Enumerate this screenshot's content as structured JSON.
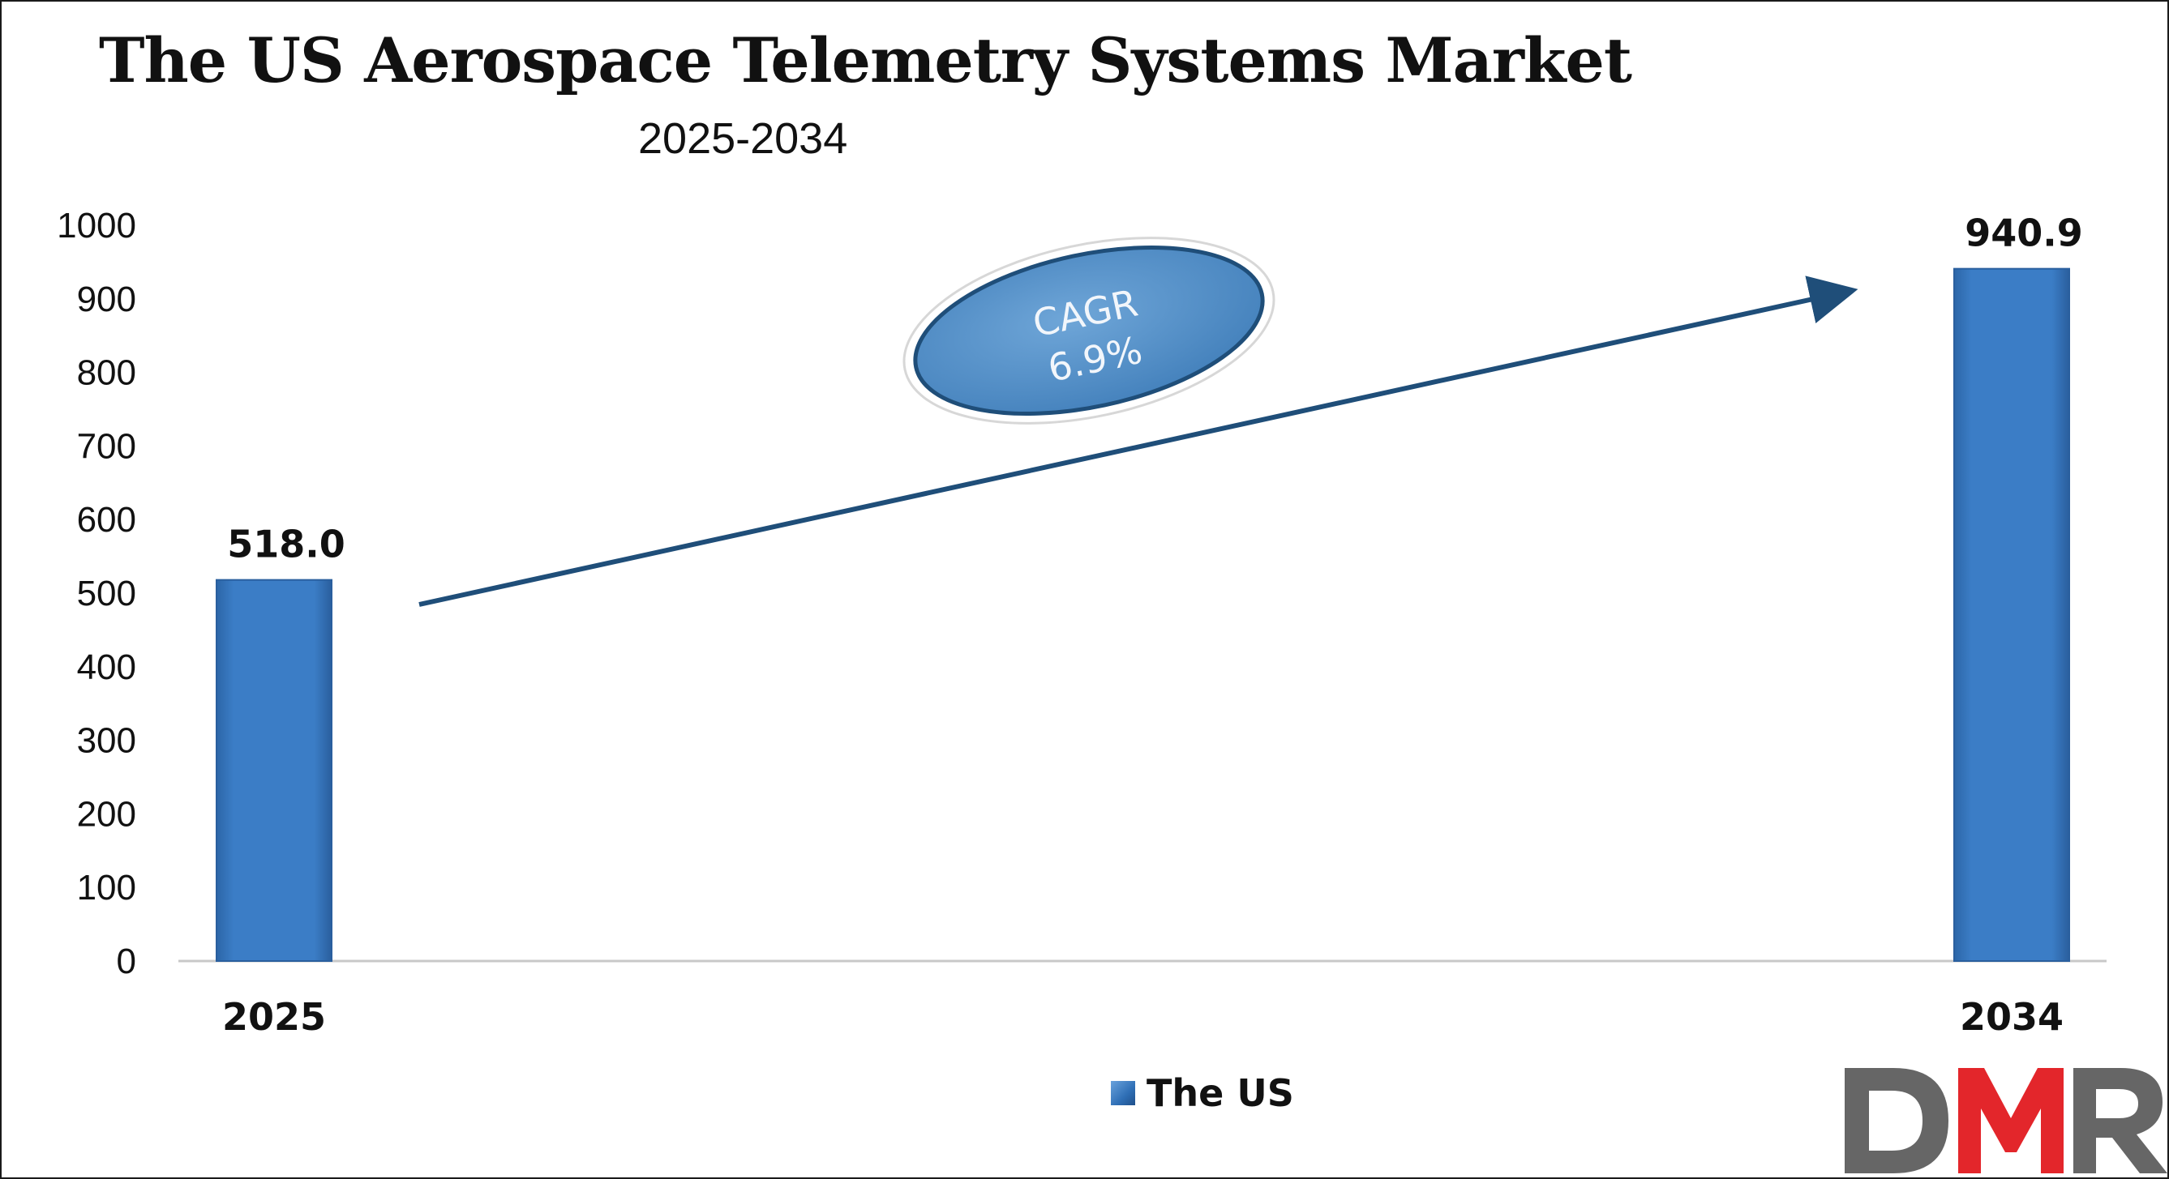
{
  "header": {
    "title": "The US Aerospace Telemetry Systems Market",
    "subtitle": "2025-2034"
  },
  "chart_data": {
    "type": "bar",
    "categories": [
      "2025",
      "2034"
    ],
    "series": [
      {
        "name": "The US",
        "values": [
          518.0,
          940.9
        ]
      }
    ],
    "data_labels": [
      "518.0",
      "940.9"
    ],
    "y_ticks": [
      "0",
      "100",
      "200",
      "300",
      "400",
      "500",
      "600",
      "700",
      "800",
      "900",
      "1000"
    ],
    "ylim": [
      0,
      1000
    ],
    "grid": false,
    "legend": "bottom-center",
    "bar_color": "#3a7cc4",
    "annotation": {
      "line1": "CAGR",
      "line2": "6.9%"
    }
  },
  "logo": {
    "text": "DMR",
    "colors": [
      "#666666",
      "#e3262b",
      "#666666"
    ]
  }
}
